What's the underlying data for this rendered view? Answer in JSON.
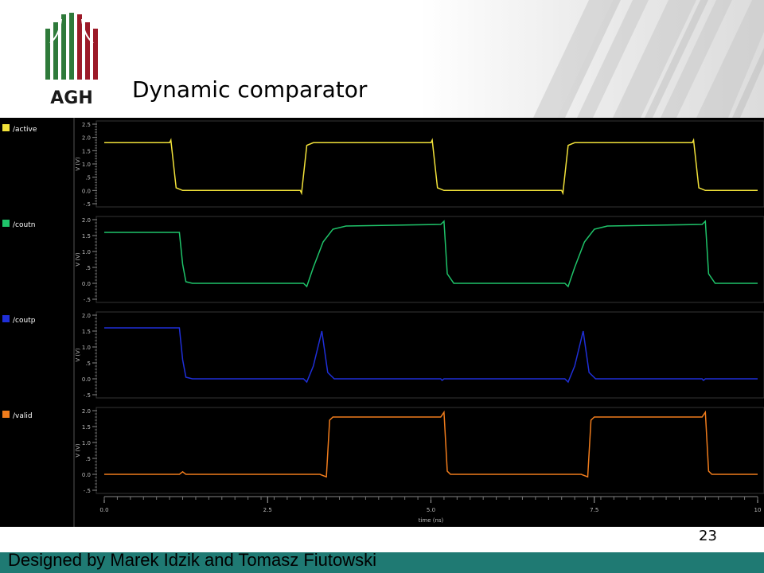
{
  "slide": {
    "title": "Dynamic comparator",
    "logo_text": "AGH",
    "page_number": "23",
    "footer": "Designed by Marek Idzik and Tomasz Fiutowski"
  },
  "colors": {
    "active": "#f2e23a",
    "coutn": "#1fc46a",
    "coutp": "#1f2fd8",
    "valid": "#f07c1c",
    "footer_bar": "#1f7a73",
    "logo_green": "#2e7a3a",
    "logo_red": "#9c1a28"
  },
  "chart_data": {
    "type": "line",
    "xlabel": "time (ns)",
    "xlim": [
      0,
      10
    ],
    "xticks": [
      "0.0",
      "2.5",
      "5.0",
      "7.5",
      "10"
    ],
    "panels": [
      {
        "name": "/active",
        "ylabel": "V (V)",
        "ylim": [
          -0.5,
          2.5
        ],
        "yticks": [
          "2.5",
          "2.0",
          "1.5",
          "1.0",
          ".5",
          "0.0",
          "-.5"
        ],
        "x": [
          0,
          1.0,
          1.02,
          1.1,
          1.2,
          3.0,
          3.02,
          3.1,
          3.2,
          5.0,
          5.02,
          5.1,
          5.2,
          7.0,
          7.02,
          7.1,
          7.2,
          9.0,
          9.02,
          9.1,
          9.2,
          10
        ],
        "y": [
          1.8,
          1.8,
          1.9,
          0.1,
          0.0,
          0.0,
          -0.1,
          1.7,
          1.8,
          1.8,
          1.9,
          0.1,
          0.0,
          0.0,
          -0.1,
          1.7,
          1.8,
          1.8,
          1.9,
          0.1,
          0.0,
          0.0
        ]
      },
      {
        "name": "/coutn",
        "ylabel": "V (V)",
        "ylim": [
          -0.5,
          2.0
        ],
        "yticks": [
          "2.0",
          "1.5",
          "1.0",
          ".5",
          "0.0",
          "-.5"
        ],
        "x": [
          0,
          1.15,
          1.2,
          1.25,
          1.35,
          3.05,
          3.1,
          3.2,
          3.35,
          3.5,
          3.7,
          5.15,
          5.2,
          5.25,
          5.35,
          7.05,
          7.1,
          7.2,
          7.35,
          7.5,
          7.7,
          9.15,
          9.2,
          9.25,
          9.35,
          10
        ],
        "y": [
          1.6,
          1.6,
          0.6,
          0.05,
          0.0,
          0.0,
          -0.1,
          0.5,
          1.3,
          1.7,
          1.8,
          1.85,
          1.95,
          0.3,
          0.0,
          0.0,
          -0.1,
          0.5,
          1.3,
          1.7,
          1.8,
          1.85,
          1.95,
          0.3,
          0.0,
          0.0
        ]
      },
      {
        "name": "/coutp",
        "ylabel": "V (V)",
        "ylim": [
          -0.5,
          2.0
        ],
        "yticks": [
          "2.0",
          "1.5",
          "1.0",
          ".5",
          "0.0",
          "-.5"
        ],
        "x": [
          0,
          1.15,
          1.2,
          1.25,
          1.35,
          3.05,
          3.1,
          3.2,
          3.33,
          3.42,
          3.52,
          5.15,
          5.17,
          5.2,
          7.05,
          7.1,
          7.2,
          7.33,
          7.42,
          7.52,
          9.15,
          9.17,
          9.2,
          10
        ],
        "y": [
          1.6,
          1.6,
          0.6,
          0.05,
          0.0,
          0.0,
          -0.1,
          0.4,
          1.5,
          0.2,
          0.0,
          0.0,
          -0.05,
          0.0,
          0.0,
          -0.1,
          0.4,
          1.5,
          0.2,
          0.0,
          0.0,
          -0.05,
          0.0,
          0.0
        ]
      },
      {
        "name": "/valid",
        "ylabel": "V (V)",
        "ylim": [
          -0.5,
          2.0
        ],
        "yticks": [
          "2.0",
          "1.5",
          "1.0",
          ".5",
          "0.0",
          "-.5"
        ],
        "x": [
          0,
          1.15,
          1.2,
          1.25,
          3.3,
          3.4,
          3.45,
          3.5,
          5.15,
          5.2,
          5.25,
          5.3,
          7.3,
          7.4,
          7.45,
          7.5,
          9.15,
          9.2,
          9.25,
          9.3,
          10
        ],
        "y": [
          0.0,
          0.0,
          0.08,
          0.0,
          0.0,
          -0.08,
          1.7,
          1.8,
          1.8,
          1.95,
          0.1,
          0.0,
          0.0,
          -0.08,
          1.7,
          1.8,
          1.8,
          1.95,
          0.1,
          0.0,
          0.0
        ]
      }
    ]
  }
}
